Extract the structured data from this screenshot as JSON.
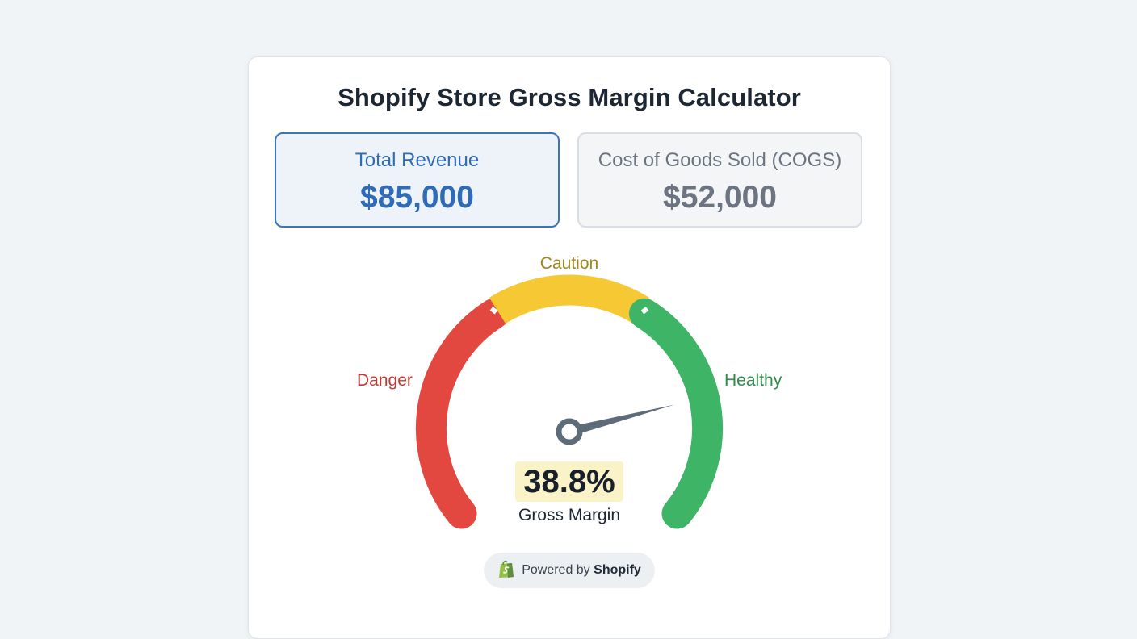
{
  "calculator": {
    "title": "Shopify Store Gross Margin Calculator",
    "revenue": {
      "label": "Total Revenue",
      "value": "$85,000"
    },
    "cogs": {
      "label": "Cost of Goods Sold (COGS)",
      "value": "$52,000"
    },
    "gauge": {
      "zones": {
        "danger": "Danger",
        "caution": "Caution",
        "healthy": "Healthy"
      },
      "reading": "38.8%",
      "caption": "Gross Margin",
      "needle_fraction": 0.78,
      "colors": {
        "danger": "#e2483f",
        "caution": "#f6c833",
        "healthy": "#3db466",
        "needle": "#5e6b78"
      }
    },
    "footer": {
      "powered_text": "Powered by",
      "brand": "Shopify",
      "icon": "shopify-bag-icon"
    }
  }
}
